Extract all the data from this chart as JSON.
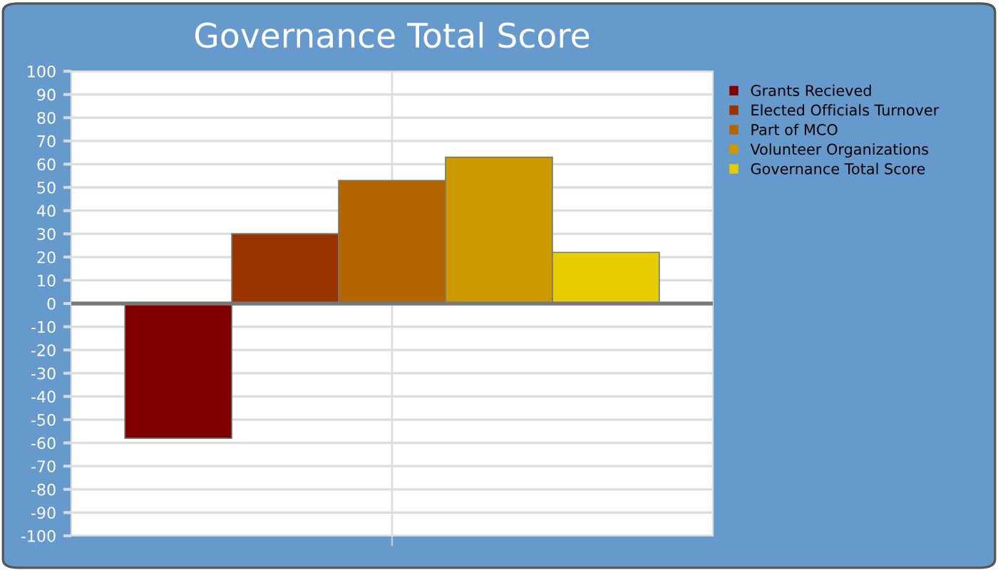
{
  "chart_data": {
    "type": "bar",
    "title": "Governance Total Score",
    "categories": [
      null
    ],
    "series": [
      {
        "name": "Grants Recieved",
        "color": "#800000",
        "values": [
          -58
        ]
      },
      {
        "name": "Elected Officials Turnover",
        "color": "#993300",
        "values": [
          30
        ]
      },
      {
        "name": "Part of MCO",
        "color": "#b36600",
        "values": [
          53
        ]
      },
      {
        "name": "Volunteer Organizations",
        "color": "#cc9900",
        "values": [
          63
        ]
      },
      {
        "name": "Governance Total Score",
        "color": "#e6cc00",
        "values": [
          22
        ]
      }
    ],
    "ylim": [
      -100,
      100
    ],
    "yticks": [
      -100,
      -90,
      -80,
      -70,
      -60,
      -50,
      -40,
      -30,
      -20,
      -10,
      0,
      10,
      20,
      30,
      40,
      50,
      60,
      70,
      80,
      90,
      100
    ],
    "grid": true,
    "legend": "top right"
  }
}
